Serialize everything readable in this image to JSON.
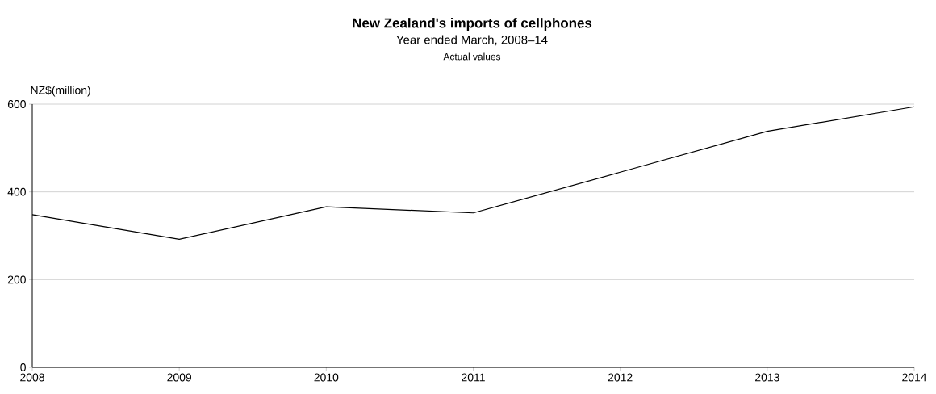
{
  "chart_data": {
    "type": "line",
    "title": "New Zealand's imports of cellphones",
    "subtitle": "Year ended March, 2008–14",
    "annotations": [
      "Actual values"
    ],
    "ylabel": "NZ$(million)",
    "x": [
      2008,
      2009,
      2010,
      2011,
      2012,
      2013,
      2014
    ],
    "values": [
      348,
      292,
      366,
      352,
      445,
      538,
      594
    ],
    "color": "#000000",
    "marker": "none",
    "line_style": "solid",
    "xlim": [
      2008,
      2014
    ],
    "xticks": [
      2008,
      2009,
      2010,
      2011,
      2012,
      2013,
      2014
    ],
    "ylim": [
      0,
      600
    ],
    "yticks": [
      0,
      200,
      400,
      600
    ],
    "grid": "y"
  }
}
